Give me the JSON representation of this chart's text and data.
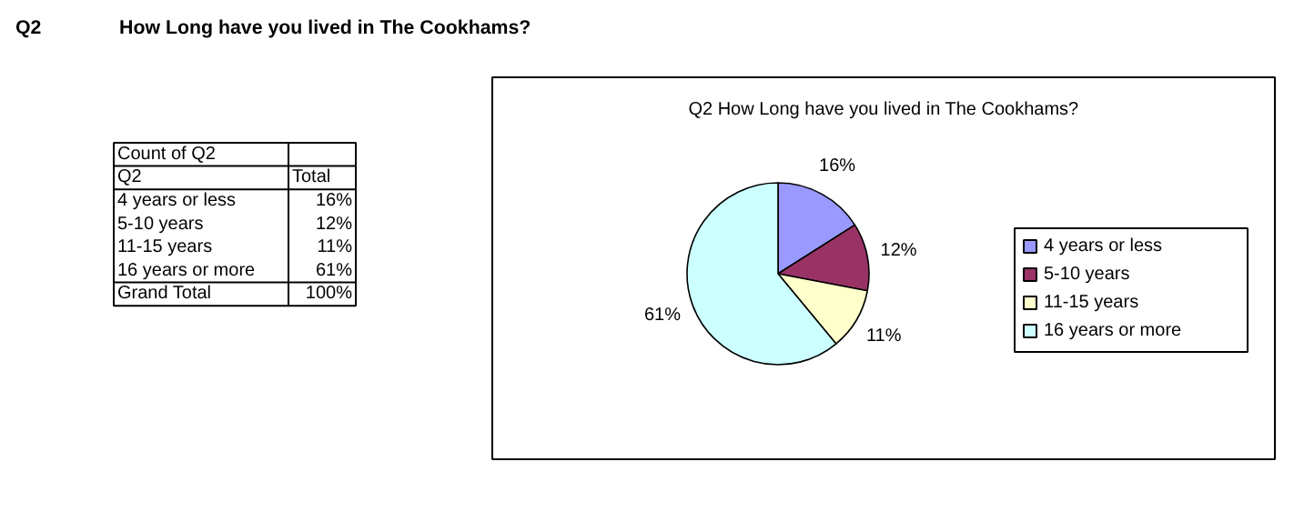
{
  "chart_data": {
    "type": "pie",
    "title": "Q2 How Long have you lived in The Cookhams?",
    "categories": [
      "4 years or less",
      "5-10 years",
      "11-15 years",
      "16 years or more"
    ],
    "values": [
      16,
      12,
      11,
      61
    ],
    "colors": [
      "#9999ff",
      "#993366",
      "#ffffcc",
      "#ccffff"
    ],
    "value_labels": [
      "16%",
      "12%",
      "11%",
      "61%"
    ],
    "legend": "right",
    "annotations": [
      "Q2",
      "How Long have you lived in The Cookhams?",
      "Count of Q2",
      "Q2",
      "Total",
      "Grand Total",
      "100%"
    ]
  }
}
